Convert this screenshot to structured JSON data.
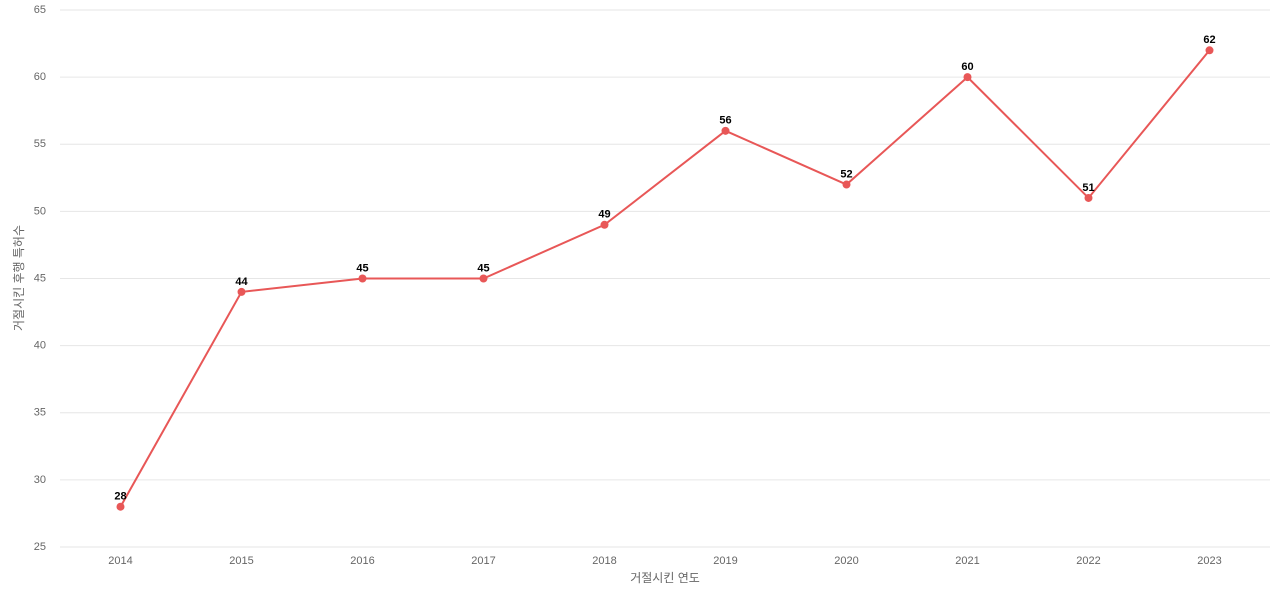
{
  "chart_data": {
    "type": "line",
    "x_label": "거절시킨 연도",
    "y_label": "거절시킨 후행 특허수",
    "categories": [
      "2014",
      "2015",
      "2016",
      "2017",
      "2018",
      "2019",
      "2020",
      "2021",
      "2022",
      "2023"
    ],
    "values": [
      28,
      44,
      45,
      45,
      49,
      56,
      52,
      60,
      51,
      62
    ],
    "color": "#e85757",
    "ylim": [
      25,
      65
    ],
    "yticks": [
      25,
      30,
      35,
      40,
      45,
      50,
      55,
      60,
      65
    ],
    "grid": true
  }
}
